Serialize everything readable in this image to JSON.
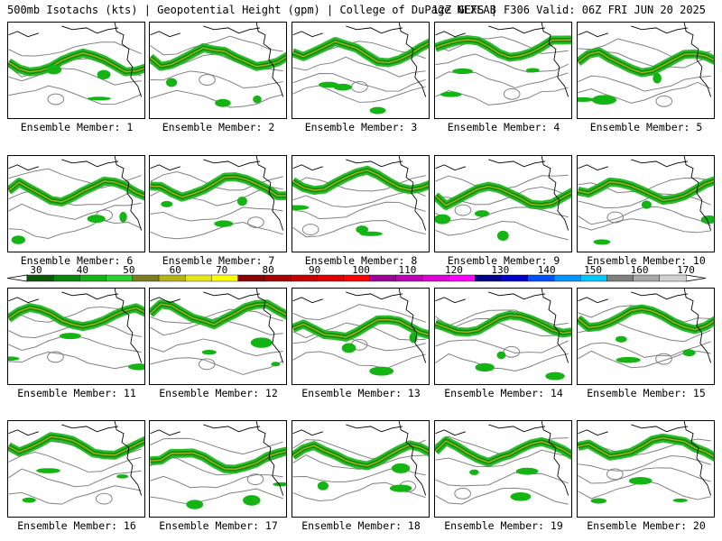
{
  "header": {
    "left": "500mb Isotachs (kts) | Geopotential Height (gpm) | College of DuPage NEXLAB",
    "right": "12Z GEFS | F306 Valid: 06Z FRI JUN 20 2025"
  },
  "colorbar": {
    "labels": [
      "30",
      "40",
      "50",
      "60",
      "70",
      "80",
      "90",
      "100",
      "110",
      "120",
      "130",
      "140",
      "150",
      "160",
      "170"
    ],
    "colors": [
      "#0a5a0a",
      "#0a8a0a",
      "#14b414",
      "#2cd22c",
      "#7c7c20",
      "#b4b414",
      "#e6e614",
      "#ffff00",
      "#8b0000",
      "#a80000",
      "#c80000",
      "#e00000",
      "#ff0000",
      "#a0009a",
      "#c000b8",
      "#e000d8",
      "#ff00ff",
      "#00008b",
      "#0000d0",
      "#0050ff",
      "#0094ff",
      "#00c8ff",
      "#808080",
      "#a8a8a8",
      "#d0d0d0"
    ]
  },
  "colors": {
    "map_border": "#000000",
    "height_contour": "#808080",
    "panel_bg": "#ffffff"
  },
  "members": [
    {
      "label": "Ensemble Member: 1"
    },
    {
      "label": "Ensemble Member: 2"
    },
    {
      "label": "Ensemble Member: 3"
    },
    {
      "label": "Ensemble Member: 4"
    },
    {
      "label": "Ensemble Member: 5"
    },
    {
      "label": "Ensemble Member: 6"
    },
    {
      "label": "Ensemble Member: 7"
    },
    {
      "label": "Ensemble Member: 8"
    },
    {
      "label": "Ensemble Member: 9"
    },
    {
      "label": "Ensemble Member: 10"
    },
    {
      "label": "Ensemble Member: 11"
    },
    {
      "label": "Ensemble Member: 12"
    },
    {
      "label": "Ensemble Member: 13"
    },
    {
      "label": "Ensemble Member: 14"
    },
    {
      "label": "Ensemble Member: 15"
    },
    {
      "label": "Ensemble Member: 16"
    },
    {
      "label": "Ensemble Member: 17"
    },
    {
      "label": "Ensemble Member: 18"
    },
    {
      "label": "Ensemble Member: 19"
    },
    {
      "label": "Ensemble Member: 20"
    }
  ]
}
